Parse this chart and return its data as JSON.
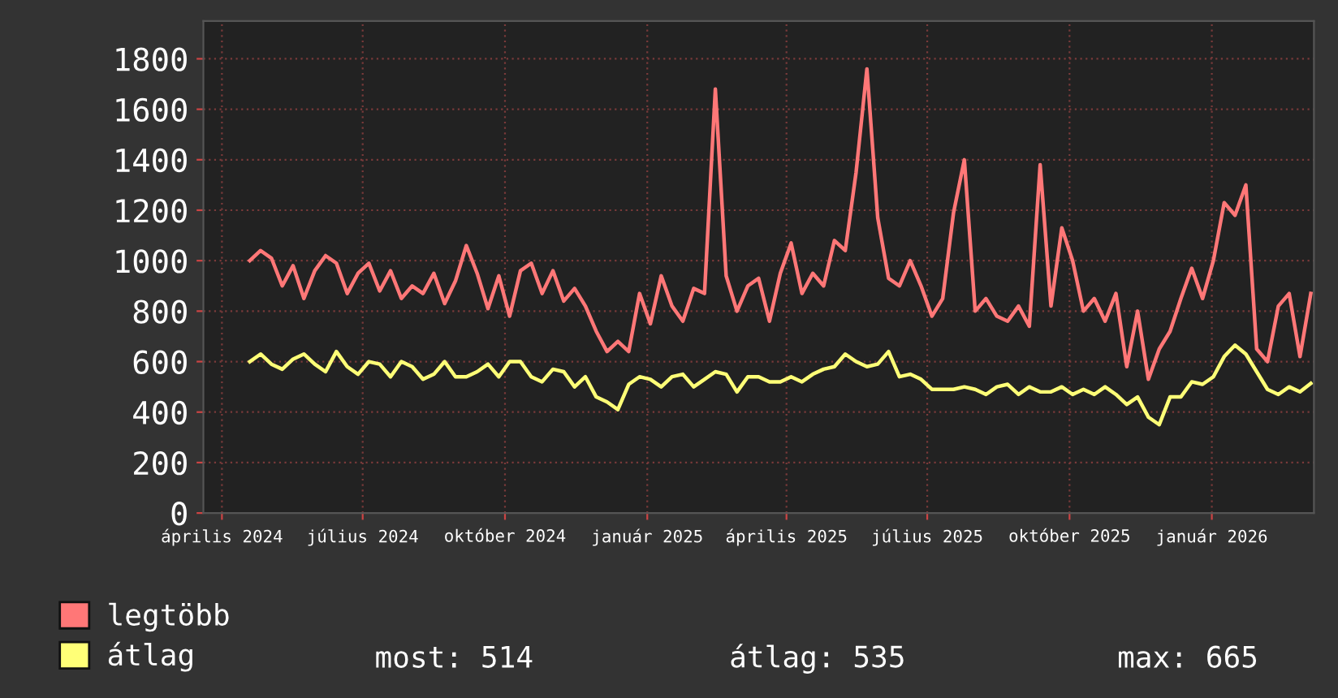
{
  "chart_data": {
    "type": "line",
    "x": [
      "2024-04-19",
      "2024-04-26",
      "2024-05-03",
      "2024-05-10",
      "2024-05-17",
      "2024-05-24",
      "2024-05-31",
      "2024-06-07",
      "2024-06-14",
      "2024-06-21",
      "2024-06-28",
      "2024-07-05",
      "2024-07-12",
      "2024-07-19",
      "2024-07-26",
      "2024-08-02",
      "2024-08-09",
      "2024-08-16",
      "2024-08-23",
      "2024-08-30",
      "2024-09-06",
      "2024-09-13",
      "2024-09-20",
      "2024-09-27",
      "2024-10-04",
      "2024-10-11",
      "2024-10-18",
      "2024-10-25",
      "2024-11-01",
      "2024-11-08",
      "2024-11-15",
      "2024-11-22",
      "2024-11-29",
      "2024-12-06",
      "2024-12-13",
      "2024-12-20",
      "2024-12-27",
      "2025-01-03",
      "2025-01-10",
      "2025-01-17",
      "2025-01-24",
      "2025-01-31",
      "2025-02-07",
      "2025-02-14",
      "2025-02-21",
      "2025-02-28",
      "2025-03-07",
      "2025-03-14",
      "2025-03-21",
      "2025-03-28",
      "2025-04-04",
      "2025-04-11",
      "2025-04-18",
      "2025-04-25",
      "2025-05-02",
      "2025-05-09",
      "2025-05-16",
      "2025-05-23",
      "2025-05-30",
      "2025-06-06",
      "2025-06-13",
      "2025-06-20",
      "2025-06-27",
      "2025-07-04",
      "2025-07-11",
      "2025-07-18",
      "2025-07-25",
      "2025-08-01",
      "2025-08-08",
      "2025-08-15",
      "2025-08-22",
      "2025-08-29",
      "2025-09-05",
      "2025-09-12",
      "2025-09-19",
      "2025-09-26",
      "2025-10-03",
      "2025-10-10",
      "2025-10-17",
      "2025-10-24",
      "2025-10-31",
      "2025-11-07",
      "2025-11-14",
      "2025-11-21",
      "2025-11-28",
      "2025-12-05",
      "2025-12-12",
      "2025-12-19",
      "2025-12-26",
      "2026-01-02",
      "2026-01-09",
      "2026-01-16",
      "2026-01-23",
      "2026-01-30",
      "2026-02-06",
      "2026-02-13",
      "2026-02-20",
      "2026-02-27",
      "2026-03-06"
    ],
    "series": [
      {
        "name": "legtöbb",
        "color": "#ff7777",
        "values": [
          1000,
          1040,
          1010,
          900,
          980,
          850,
          960,
          1020,
          990,
          870,
          950,
          990,
          880,
          960,
          850,
          900,
          870,
          950,
          830,
          920,
          1060,
          950,
          810,
          940,
          780,
          960,
          990,
          870,
          960,
          840,
          890,
          820,
          720,
          640,
          680,
          640,
          870,
          750,
          940,
          820,
          760,
          890,
          870,
          1680,
          940,
          800,
          900,
          930,
          760,
          950,
          1070,
          870,
          950,
          900,
          1080,
          1040,
          1350,
          1760,
          1170,
          930,
          900,
          1000,
          900,
          780,
          850,
          1190,
          1400,
          800,
          850,
          780,
          760,
          820,
          740,
          1380,
          820,
          1130,
          1000,
          800,
          850,
          760,
          870,
          580,
          800,
          530,
          650,
          720,
          850,
          970,
          850,
          1000,
          1230,
          1180,
          1300,
          650,
          600,
          820,
          870,
          620,
          870
        ]
      },
      {
        "name": "átlag",
        "color": "#ffff77",
        "values": [
          600,
          630,
          590,
          570,
          610,
          630,
          590,
          560,
          640,
          580,
          550,
          600,
          590,
          540,
          600,
          580,
          530,
          550,
          600,
          540,
          540,
          560,
          590,
          540,
          600,
          600,
          540,
          520,
          570,
          560,
          500,
          540,
          460,
          440,
          410,
          510,
          540,
          530,
          500,
          540,
          550,
          500,
          530,
          560,
          550,
          480,
          540,
          540,
          520,
          520,
          540,
          520,
          550,
          570,
          580,
          630,
          600,
          580,
          590,
          640,
          540,
          550,
          530,
          490,
          490,
          490,
          500,
          490,
          470,
          500,
          510,
          470,
          500,
          480,
          480,
          500,
          470,
          490,
          470,
          500,
          470,
          430,
          460,
          380,
          350,
          460,
          460,
          520,
          510,
          540,
          620,
          665,
          630,
          560,
          490,
          470,
          500,
          480,
          514
        ]
      }
    ],
    "xlim": [
      "2024-03-20",
      "2026-03-08"
    ],
    "xticks": [
      {
        "value": "2024-04-01",
        "label": "április 2024"
      },
      {
        "value": "2024-07-01",
        "label": "július 2024"
      },
      {
        "value": "2024-10-01",
        "label": "október 2024"
      },
      {
        "value": "2025-01-01",
        "label": "január 2025"
      },
      {
        "value": "2025-04-01",
        "label": "április 2025"
      },
      {
        "value": "2025-07-01",
        "label": "július 2025"
      },
      {
        "value": "2025-10-01",
        "label": "október 2025"
      },
      {
        "value": "2026-01-01",
        "label": "január 2026"
      }
    ],
    "ylim": [
      0,
      1950
    ],
    "yticks": [
      0,
      200,
      400,
      600,
      800,
      1000,
      1200,
      1400,
      1600,
      1800
    ],
    "grid": true,
    "legend": "bottom left",
    "line_style": "solid",
    "marker": "none",
    "annotations": [
      "most: 514",
      "átlag: 535",
      "max: 665"
    ]
  }
}
